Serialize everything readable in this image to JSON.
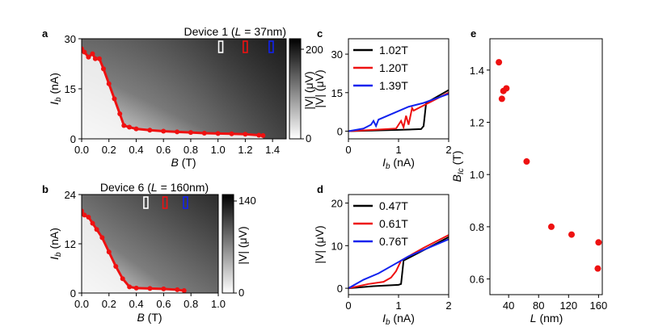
{
  "chart_data": [
    {
      "panel": "a",
      "type": "heatmap",
      "title_prefix": "Device 1 (",
      "title_var": "L",
      "title_suffix": " = 37nm)",
      "xlabel": "B",
      "xunit": " (T)",
      "ylabel": "I",
      "ylabel_sub": "b",
      "yunit": " (nA)",
      "xlim": [
        0,
        1.5
      ],
      "ylim": [
        0,
        30
      ],
      "xticks": [
        "0.0",
        "0.2",
        "0.4",
        "0.6",
        "0.8",
        "1.0",
        "1.2",
        "1.4"
      ],
      "xtick_values": [
        0,
        0.2,
        0.4,
        0.6,
        0.8,
        1.0,
        1.2,
        1.4
      ],
      "yticks": [
        "0",
        "15",
        "30"
      ],
      "ytick_values": [
        0,
        15,
        30
      ],
      "colorbar": {
        "label": "|V| (μV)",
        "ticks": [
          "0",
          "200"
        ],
        "range": [
          0,
          200
        ]
      },
      "markers": [
        {
          "x": 1.02,
          "color": "#ffffff"
        },
        {
          "x": 1.2,
          "color": "#ee1111"
        },
        {
          "x": 1.39,
          "color": "#1122ee"
        }
      ],
      "critical_current": {
        "color": "#ee1111",
        "x": [
          0.0,
          0.02,
          0.05,
          0.08,
          0.1,
          0.13,
          0.16,
          0.2,
          0.24,
          0.28,
          0.31,
          0.35,
          0.4,
          0.5,
          0.6,
          0.7,
          0.8,
          0.9,
          1.0,
          1.1,
          1.2,
          1.3,
          1.33
        ],
        "y": [
          27.0,
          26.0,
          24.5,
          25.5,
          24.0,
          24.0,
          21.0,
          16.5,
          12.0,
          7.5,
          4.0,
          3.5,
          3.0,
          2.6,
          2.3,
          2.1,
          1.9,
          1.7,
          1.6,
          1.5,
          1.4,
          1.1,
          1.0
        ]
      }
    },
    {
      "panel": "b",
      "type": "heatmap",
      "title_prefix": "Device 6 (",
      "title_var": "L",
      "title_suffix": " = 160nm)",
      "xlabel": "B",
      "xunit": " (T)",
      "ylabel": "I",
      "ylabel_sub": "b",
      "yunit": " (nA)",
      "xlim": [
        0,
        1.0
      ],
      "ylim": [
        0,
        24
      ],
      "xticks": [
        "0.0",
        "0.2",
        "0.4",
        "0.6",
        "0.8",
        "1.0"
      ],
      "xtick_values": [
        0,
        0.2,
        0.4,
        0.6,
        0.8,
        1.0
      ],
      "yticks": [
        "0",
        "12",
        "24"
      ],
      "ytick_values": [
        0,
        12,
        24
      ],
      "colorbar": {
        "label": "|V| (μV)",
        "ticks": [
          "0",
          "140"
        ],
        "range": [
          0,
          140
        ]
      },
      "markers": [
        {
          "x": 0.47,
          "color": "#ffffff"
        },
        {
          "x": 0.61,
          "color": "#ee1111"
        },
        {
          "x": 0.76,
          "color": "#1122ee"
        }
      ],
      "critical_current": {
        "color": "#ee1111",
        "x": [
          0.0,
          0.02,
          0.05,
          0.08,
          0.11,
          0.15,
          0.2,
          0.25,
          0.3,
          0.35,
          0.4,
          0.5,
          0.6,
          0.7,
          0.75
        ],
        "y": [
          20.0,
          19.0,
          18.5,
          17.0,
          15.5,
          13.5,
          10.0,
          6.5,
          3.5,
          1.5,
          1.2,
          1.1,
          1.0,
          0.8,
          0.6
        ]
      }
    },
    {
      "panel": "c",
      "type": "line",
      "xlabel": "I",
      "xlabel_sub": "b",
      "xunit": " (nA)",
      "ylabel": "|V| (μV)",
      "xlim": [
        0,
        2
      ],
      "ylim": [
        -3,
        36
      ],
      "xticks": [
        "0",
        "1",
        "2"
      ],
      "xtick_values": [
        0,
        1,
        2
      ],
      "yticks": [
        "0",
        "15",
        "30"
      ],
      "ytick_values": [
        0,
        15,
        30
      ],
      "legend_position": "top-left",
      "series": [
        {
          "name": "1.02T",
          "color": "#000000",
          "x": [
            0,
            1.0,
            1.45,
            1.5,
            1.55,
            2.0
          ],
          "y": [
            0,
            0.5,
            0.8,
            2,
            11,
            16
          ]
        },
        {
          "name": "1.20T",
          "color": "#ee1111",
          "x": [
            0,
            0.5,
            0.95,
            1.05,
            1.1,
            1.15,
            1.2,
            1.27,
            1.3,
            1.5,
            2.0
          ],
          "y": [
            0,
            0.5,
            1.0,
            4,
            1.5,
            6,
            2.5,
            9,
            8,
            10,
            15
          ]
        },
        {
          "name": "1.39T",
          "color": "#1122ee",
          "x": [
            0,
            0.3,
            0.45,
            0.5,
            0.55,
            0.6,
            0.9,
            1.2,
            1.5,
            2.0
          ],
          "y": [
            0,
            1,
            2.5,
            4,
            2,
            4.5,
            7,
            9.5,
            11,
            14.5
          ]
        }
      ]
    },
    {
      "panel": "d",
      "type": "line",
      "xlabel": "I",
      "xlabel_sub": "b",
      "xunit": " (nA)",
      "ylabel": "|V| (μV)",
      "xlim": [
        0,
        2
      ],
      "ylim": [
        -1.5,
        22
      ],
      "xticks": [
        "0",
        "1",
        "2"
      ],
      "xtick_values": [
        0,
        1,
        2
      ],
      "yticks": [
        "0",
        "10",
        "20"
      ],
      "ytick_values": [
        0,
        10,
        20
      ],
      "legend_position": "top-left",
      "series": [
        {
          "name": "0.47T",
          "color": "#000000",
          "x": [
            0,
            0.5,
            1.0,
            1.05,
            1.1,
            2.0
          ],
          "y": [
            0,
            0.5,
            0.8,
            1,
            6.5,
            12
          ]
        },
        {
          "name": "0.61T",
          "color": "#ee1111",
          "x": [
            0,
            0.4,
            0.7,
            0.85,
            0.95,
            1.05,
            1.5,
            2.0
          ],
          "y": [
            0,
            1,
            1.5,
            2.5,
            4,
            6.5,
            9.5,
            12.5
          ]
        },
        {
          "name": "0.76T",
          "color": "#1122ee",
          "x": [
            0,
            0.3,
            0.6,
            0.9,
            1.2,
            1.6,
            2.0
          ],
          "y": [
            0,
            2,
            3.5,
            5.5,
            7.5,
            9.5,
            11.5
          ]
        }
      ]
    },
    {
      "panel": "e",
      "type": "scatter",
      "xlabel": "L",
      "xunit": " (nm)",
      "ylabel": "B",
      "ylabel_sub": "Ic",
      "yunit": " (T)",
      "xlim": [
        15,
        165
      ],
      "ylim": [
        0.54,
        1.52
      ],
      "xticks": [
        "40",
        "80",
        "120",
        "160"
      ],
      "xtick_values": [
        40,
        80,
        120,
        160
      ],
      "yticks": [
        "0.6",
        "0.8",
        "1.0",
        "1.2",
        "1.4"
      ],
      "ytick_values": [
        0.6,
        0.8,
        1.0,
        1.2,
        1.4
      ],
      "color": "#ee1111",
      "x": [
        27,
        31,
        33,
        37,
        64,
        97,
        124,
        159,
        160
      ],
      "y": [
        1.43,
        1.29,
        1.32,
        1.33,
        1.05,
        0.8,
        0.77,
        0.64,
        0.74
      ]
    }
  ]
}
